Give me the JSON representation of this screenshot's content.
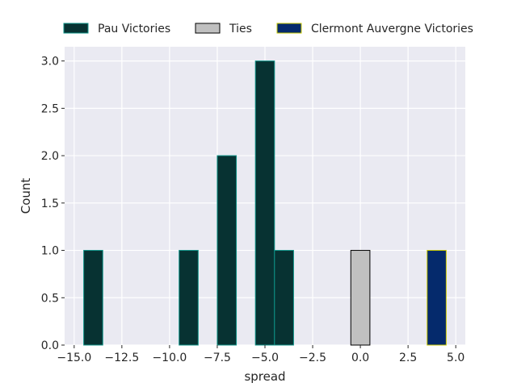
{
  "chart_data": {
    "type": "bar",
    "xlabel": "spread",
    "ylabel": "Count",
    "xlim": [
      -15.5,
      5.5
    ],
    "ylim": [
      0,
      3.15
    ],
    "xticks": [
      -15.0,
      -12.5,
      -10.0,
      -7.5,
      -5.0,
      -2.5,
      0.0,
      2.5,
      5.0
    ],
    "xtick_labels": [
      "−15.0",
      "−12.5",
      "−10.0",
      "−7.5",
      "−5.0",
      "−2.5",
      "0.0",
      "2.5",
      "5.0"
    ],
    "yticks": [
      0.0,
      0.5,
      1.0,
      1.5,
      2.0,
      2.5,
      3.0
    ],
    "ytick_labels": [
      "0.0",
      "0.5",
      "1.0",
      "1.5",
      "2.0",
      "2.5",
      "3.0"
    ],
    "grid": true,
    "legend_placement": "top",
    "bin_width": 1.0,
    "series": [
      {
        "name": "Pau Victories",
        "fill": "#073232",
        "edge": "#0f9488",
        "bars": [
          {
            "x": -14,
            "count": 1
          },
          {
            "x": -9,
            "count": 1
          },
          {
            "x": -7,
            "count": 2
          },
          {
            "x": -5,
            "count": 3
          },
          {
            "x": -4,
            "count": 1
          }
        ]
      },
      {
        "name": "Ties",
        "fill": "#c0c0c0",
        "edge": "#000000",
        "bars": [
          {
            "x": 0,
            "count": 1
          }
        ]
      },
      {
        "name": "Clermont Auvergne Victories",
        "fill": "#052a6c",
        "edge": "#c8c800",
        "bars": [
          {
            "x": 4,
            "count": 1
          }
        ]
      }
    ]
  }
}
